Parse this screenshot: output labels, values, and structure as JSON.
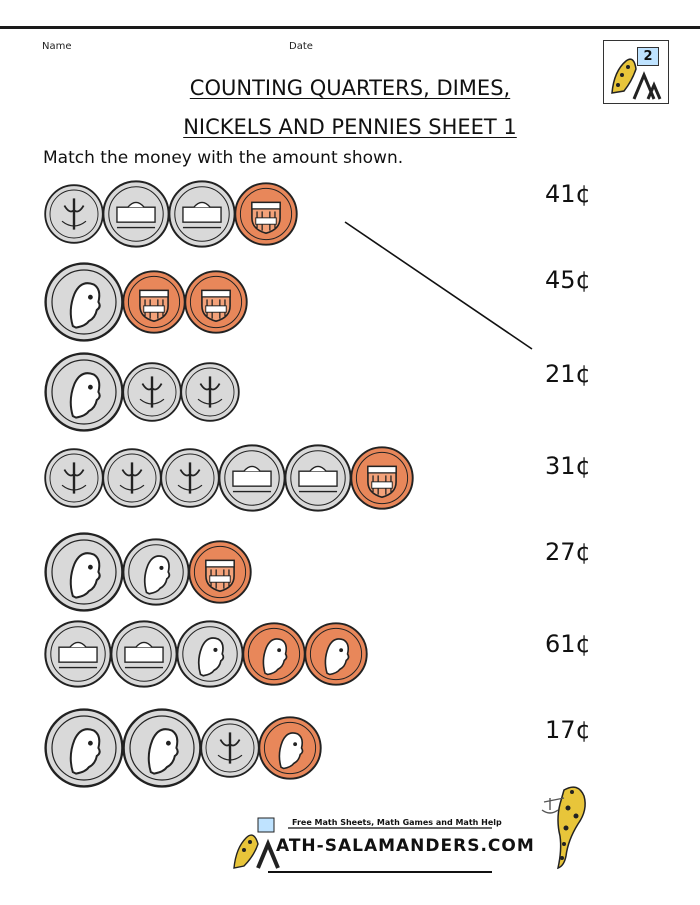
{
  "header": {
    "name_label": "Name",
    "date_label": "Date",
    "grade_badge": "2"
  },
  "title": {
    "line1": "COUNTING QUARTERS, DIMES,",
    "line2": "NICKELS AND PENNIES SHEET 1"
  },
  "instruction": "Match the money with the amount shown.",
  "coin_colors": {
    "silver": "#d9d9d9",
    "copper": "#e8875a",
    "ink": "#222222"
  },
  "rows": [
    {
      "coins": [
        "dime",
        "nickel",
        "nickel",
        "penny-shield"
      ]
    },
    {
      "coins": [
        "quarter",
        "penny-shield",
        "penny-shield"
      ]
    },
    {
      "coins": [
        "quarter",
        "dime",
        "dime"
      ]
    },
    {
      "coins": [
        "dime",
        "dime",
        "dime",
        "nickel",
        "nickel",
        "penny-shield"
      ]
    },
    {
      "coins": [
        "quarter",
        "nickel-jefferson",
        "penny-shield"
      ]
    },
    {
      "coins": [
        "nickel",
        "nickel",
        "nickel-jefferson",
        "penny-lincoln",
        "penny-lincoln"
      ]
    },
    {
      "coins": [
        "quarter",
        "quarter",
        "dime",
        "penny-lincoln"
      ]
    }
  ],
  "amounts": [
    "41¢",
    "45¢",
    "21¢",
    "31¢",
    "27¢",
    "61¢",
    "17¢"
  ],
  "footer": {
    "tagline": "Free Math Sheets, Math Games and Math Help",
    "site": "ATH-SALAMANDERS.COM"
  }
}
